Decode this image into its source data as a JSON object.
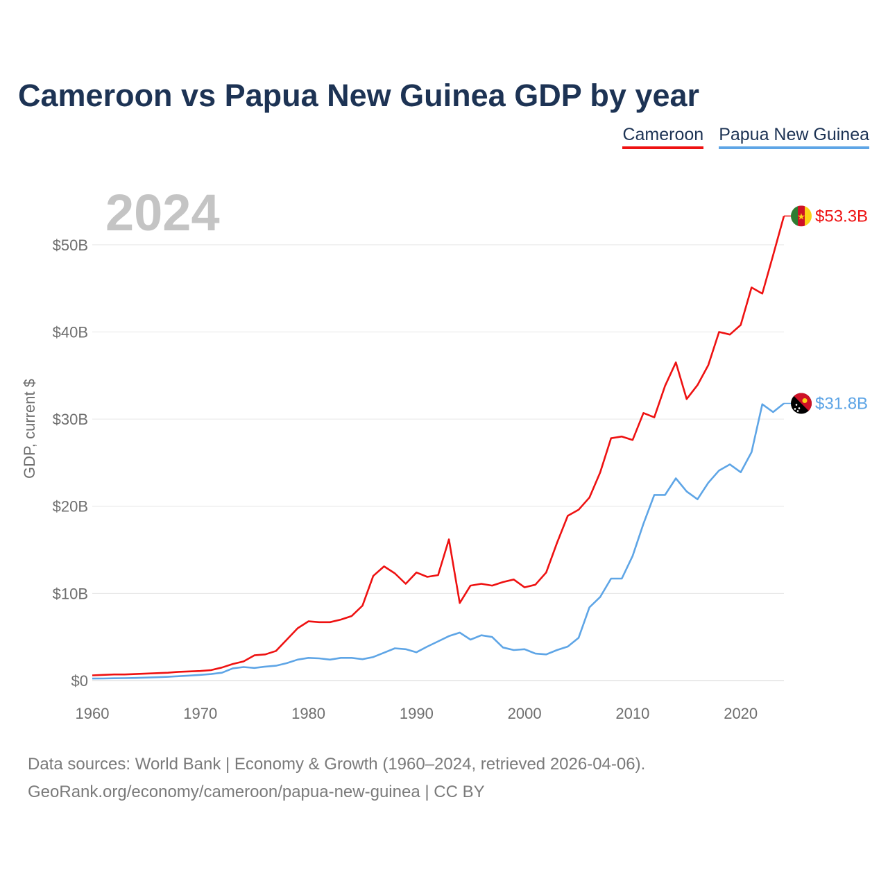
{
  "chart_data": {
    "type": "line",
    "title": "Cameroon vs Papua New Guinea GDP by year",
    "xlabel": "",
    "ylabel": "GDP, current $",
    "year_label": "2024",
    "xlim": [
      1960,
      2024
    ],
    "ylim": [
      0,
      55
    ],
    "yticks": [
      0,
      10,
      20,
      30,
      40,
      50
    ],
    "ytick_labels": [
      "$0",
      "$10B",
      "$20B",
      "$30B",
      "$40B",
      "$50B"
    ],
    "xticks": [
      1960,
      1970,
      1980,
      1990,
      2000,
      2010,
      2020
    ],
    "xtick_labels": [
      "1960",
      "1970",
      "1980",
      "1990",
      "2000",
      "2010",
      "2020"
    ],
    "grid": true,
    "legend_position": "top-right",
    "x": [
      1960,
      1961,
      1962,
      1963,
      1964,
      1965,
      1966,
      1967,
      1968,
      1969,
      1970,
      1971,
      1972,
      1973,
      1974,
      1975,
      1976,
      1977,
      1978,
      1979,
      1980,
      1981,
      1982,
      1983,
      1984,
      1985,
      1986,
      1987,
      1988,
      1989,
      1990,
      1991,
      1992,
      1993,
      1994,
      1995,
      1996,
      1997,
      1998,
      1999,
      2000,
      2001,
      2002,
      2003,
      2004,
      2005,
      2006,
      2007,
      2008,
      2009,
      2010,
      2011,
      2012,
      2013,
      2014,
      2015,
      2016,
      2017,
      2018,
      2019,
      2020,
      2021,
      2022,
      2023,
      2024
    ],
    "series": [
      {
        "name": "Cameroon",
        "color": "#ee1111",
        "end_label": "$53.3B",
        "values": [
          0.6,
          0.65,
          0.7,
          0.7,
          0.75,
          0.8,
          0.85,
          0.9,
          1.0,
          1.05,
          1.1,
          1.2,
          1.5,
          1.9,
          2.2,
          2.9,
          3.0,
          3.4,
          4.7,
          6.0,
          6.8,
          6.7,
          6.7,
          7.0,
          7.4,
          8.6,
          12.0,
          13.1,
          12.3,
          11.1,
          12.4,
          11.9,
          12.1,
          16.2,
          8.9,
          10.9,
          11.1,
          10.9,
          11.3,
          11.6,
          10.7,
          11.0,
          12.4,
          15.8,
          18.9,
          19.6,
          21.0,
          23.9,
          27.8,
          28.0,
          27.6,
          30.7,
          30.2,
          33.8,
          36.5,
          32.3,
          33.9,
          36.2,
          40.0,
          39.7,
          40.8,
          45.1,
          44.4,
          48.8,
          53.3
        ]
      },
      {
        "name": "Papua New Guinea",
        "color": "#5ea5e6",
        "end_label": "$31.8B",
        "values": [
          0.23,
          0.24,
          0.26,
          0.28,
          0.3,
          0.34,
          0.38,
          0.43,
          0.5,
          0.57,
          0.65,
          0.75,
          0.9,
          1.4,
          1.55,
          1.45,
          1.6,
          1.7,
          2.0,
          2.4,
          2.6,
          2.55,
          2.4,
          2.6,
          2.6,
          2.45,
          2.7,
          3.2,
          3.7,
          3.6,
          3.25,
          3.9,
          4.5,
          5.1,
          5.5,
          4.7,
          5.2,
          5.0,
          3.8,
          3.5,
          3.6,
          3.1,
          3.0,
          3.5,
          3.9,
          4.9,
          8.4,
          9.6,
          11.7,
          11.7,
          14.3,
          18.0,
          21.3,
          21.3,
          23.2,
          21.7,
          20.8,
          22.7,
          24.1,
          24.8,
          23.9,
          26.2,
          31.7,
          30.8,
          31.8
        ]
      }
    ],
    "legend": [
      "Cameroon",
      "Papua New Guinea"
    ],
    "source_lines": [
      "Data sources: World Bank | Economy & Growth (1960–2024, retrieved 2026-04-06).",
      "GeoRank.org/economy/cameroon/papua-new-guinea | CC BY"
    ]
  }
}
